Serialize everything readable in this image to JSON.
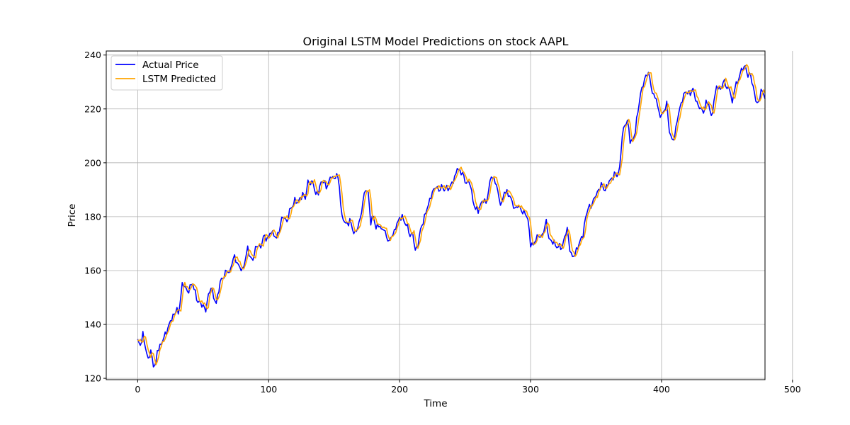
{
  "chart_data": {
    "type": "line",
    "title": "Original LSTM Model Predictions on stock AAPL",
    "xlabel": "Time",
    "ylabel": "Price",
    "xlim": [
      -24,
      479
    ],
    "ylim": [
      119.5,
      241.5
    ],
    "xticks": [
      0,
      100,
      200,
      300,
      400,
      500
    ],
    "yticks": [
      120,
      140,
      160,
      180,
      200,
      220,
      240
    ],
    "grid": true,
    "legend": {
      "position": "top-left",
      "frame": true
    },
    "x_range": [
      0,
      479
    ],
    "series": [
      {
        "name": "Actual Price",
        "color": "#0000ff",
        "anchors": [
          [
            0,
            134
          ],
          [
            2,
            132.5
          ],
          [
            4,
            136
          ],
          [
            6,
            131.5
          ],
          [
            8,
            127
          ],
          [
            10,
            130
          ],
          [
            12,
            125
          ],
          [
            14,
            125.5
          ],
          [
            15,
            130
          ],
          [
            17,
            132
          ],
          [
            19,
            134
          ],
          [
            21,
            136
          ],
          [
            24,
            140
          ],
          [
            26,
            142
          ],
          [
            28,
            144
          ],
          [
            30,
            146
          ],
          [
            31,
            143
          ],
          [
            32,
            147
          ],
          [
            34,
            155
          ],
          [
            36,
            154
          ],
          [
            38,
            152
          ],
          [
            40,
            154
          ],
          [
            42,
            155
          ],
          [
            44,
            152
          ],
          [
            46,
            148
          ],
          [
            48,
            148
          ],
          [
            50,
            147
          ],
          [
            52,
            145
          ],
          [
            54,
            151
          ],
          [
            56,
            154
          ],
          [
            58,
            150
          ],
          [
            60,
            148
          ],
          [
            62,
            153
          ],
          [
            64,
            157
          ],
          [
            66,
            158
          ],
          [
            68,
            160
          ],
          [
            70,
            159
          ],
          [
            72,
            163
          ],
          [
            74,
            165
          ],
          [
            76,
            163
          ],
          [
            78,
            161
          ],
          [
            80,
            160
          ],
          [
            82,
            164
          ],
          [
            84,
            168
          ],
          [
            86,
            165
          ],
          [
            88,
            164
          ],
          [
            90,
            168
          ],
          [
            92,
            170
          ],
          [
            94,
            168
          ],
          [
            96,
            173
          ],
          [
            98,
            172
          ],
          [
            100,
            172
          ],
          [
            102,
            175
          ],
          [
            104,
            173
          ],
          [
            106,
            172
          ],
          [
            108,
            175
          ],
          [
            110,
            179
          ],
          [
            112,
            180
          ],
          [
            114,
            178
          ],
          [
            116,
            182
          ],
          [
            118,
            184
          ],
          [
            120,
            186
          ],
          [
            122,
            185
          ],
          [
            124,
            187
          ],
          [
            126,
            188
          ],
          [
            128,
            187
          ],
          [
            130,
            193
          ],
          [
            132,
            192
          ],
          [
            134,
            193
          ],
          [
            136,
            188
          ],
          [
            138,
            189
          ],
          [
            140,
            193
          ],
          [
            142,
            193
          ],
          [
            144,
            191
          ],
          [
            146,
            193
          ],
          [
            148,
            195
          ],
          [
            150,
            194
          ],
          [
            152,
            196
          ],
          [
            154,
            191
          ],
          [
            156,
            180
          ],
          [
            158,
            178
          ],
          [
            160,
            177
          ],
          [
            162,
            179
          ],
          [
            164,
            175
          ],
          [
            166,
            174
          ],
          [
            168,
            176
          ],
          [
            170,
            179
          ],
          [
            172,
            186
          ],
          [
            174,
            190
          ],
          [
            176,
            189
          ],
          [
            178,
            178
          ],
          [
            180,
            180
          ],
          [
            182,
            176
          ],
          [
            184,
            177
          ],
          [
            186,
            175
          ],
          [
            188,
            176
          ],
          [
            190,
            172
          ],
          [
            192,
            171
          ],
          [
            194,
            173
          ],
          [
            196,
            174
          ],
          [
            198,
            178
          ],
          [
            200,
            179
          ],
          [
            202,
            180
          ],
          [
            204,
            178
          ],
          [
            206,
            176
          ],
          [
            208,
            173
          ],
          [
            210,
            174
          ],
          [
            212,
            167
          ],
          [
            214,
            170
          ],
          [
            216,
            175
          ],
          [
            218,
            178
          ],
          [
            220,
            182
          ],
          [
            222,
            184
          ],
          [
            224,
            188
          ],
          [
            226,
            190
          ],
          [
            228,
            191
          ],
          [
            230,
            190
          ],
          [
            232,
            191
          ],
          [
            234,
            190
          ],
          [
            236,
            191
          ],
          [
            238,
            190
          ],
          [
            240,
            193
          ],
          [
            242,
            194
          ],
          [
            244,
            198
          ],
          [
            246,
            197
          ],
          [
            248,
            196
          ],
          [
            250,
            193
          ],
          [
            252,
            193
          ],
          [
            254,
            192
          ],
          [
            256,
            186
          ],
          [
            258,
            183
          ],
          [
            260,
            182
          ],
          [
            262,
            185
          ],
          [
            264,
            186
          ],
          [
            266,
            185
          ],
          [
            268,
            190
          ],
          [
            270,
            195
          ],
          [
            272,
            194
          ],
          [
            274,
            192
          ],
          [
            276,
            186
          ],
          [
            278,
            185
          ],
          [
            280,
            189
          ],
          [
            282,
            189
          ],
          [
            284,
            188
          ],
          [
            286,
            185
          ],
          [
            288,
            183
          ],
          [
            290,
            184
          ],
          [
            292,
            183
          ],
          [
            294,
            182
          ],
          [
            296,
            181
          ],
          [
            298,
            179
          ],
          [
            300,
            170
          ],
          [
            302,
            169
          ],
          [
            304,
            172
          ],
          [
            306,
            173
          ],
          [
            308,
            172
          ],
          [
            310,
            175
          ],
          [
            312,
            178
          ],
          [
            314,
            172
          ],
          [
            316,
            171
          ],
          [
            318,
            170
          ],
          [
            320,
            169
          ],
          [
            322,
            169
          ],
          [
            324,
            168
          ],
          [
            326,
            173
          ],
          [
            328,
            175
          ],
          [
            330,
            168
          ],
          [
            332,
            165
          ],
          [
            334,
            166
          ],
          [
            336,
            169
          ],
          [
            338,
            171
          ],
          [
            340,
            173
          ],
          [
            342,
            180
          ],
          [
            344,
            183
          ],
          [
            346,
            184
          ],
          [
            348,
            186
          ],
          [
            350,
            188
          ],
          [
            352,
            190
          ],
          [
            354,
            192
          ],
          [
            356,
            190
          ],
          [
            358,
            191
          ],
          [
            360,
            193
          ],
          [
            362,
            194
          ],
          [
            364,
            196
          ],
          [
            366,
            195
          ],
          [
            368,
            198
          ],
          [
            370,
            210
          ],
          [
            372,
            214
          ],
          [
            374,
            216
          ],
          [
            376,
            208
          ],
          [
            378,
            208
          ],
          [
            380,
            212
          ],
          [
            382,
            219
          ],
          [
            384,
            226
          ],
          [
            386,
            229
          ],
          [
            388,
            232
          ],
          [
            390,
            234
          ],
          [
            392,
            228
          ],
          [
            394,
            225
          ],
          [
            396,
            224
          ],
          [
            398,
            218
          ],
          [
            400,
            218
          ],
          [
            402,
            219
          ],
          [
            404,
            222
          ],
          [
            406,
            212
          ],
          [
            408,
            208
          ],
          [
            410,
            210
          ],
          [
            412,
            216
          ],
          [
            414,
            220
          ],
          [
            416,
            224
          ],
          [
            418,
            226
          ],
          [
            420,
            226
          ],
          [
            422,
            226
          ],
          [
            424,
            227
          ],
          [
            426,
            224
          ],
          [
            428,
            221
          ],
          [
            430,
            220
          ],
          [
            432,
            219
          ],
          [
            434,
            222
          ],
          [
            436,
            222
          ],
          [
            438,
            217
          ],
          [
            440,
            222
          ],
          [
            442,
            229
          ],
          [
            444,
            227
          ],
          [
            446,
            228
          ],
          [
            448,
            231
          ],
          [
            450,
            227
          ],
          [
            452,
            228
          ],
          [
            454,
            222
          ],
          [
            456,
            228
          ],
          [
            458,
            230
          ],
          [
            460,
            233
          ],
          [
            462,
            235
          ],
          [
            464,
            236
          ],
          [
            466,
            232
          ],
          [
            468,
            233
          ],
          [
            470,
            228
          ],
          [
            472,
            223
          ],
          [
            474,
            222
          ],
          [
            476,
            227
          ],
          [
            478,
            225
          ],
          [
            479,
            225
          ]
        ]
      },
      {
        "name": "LSTM Predicted",
        "color": "#ffa500",
        "shift": 1.5
      }
    ]
  }
}
